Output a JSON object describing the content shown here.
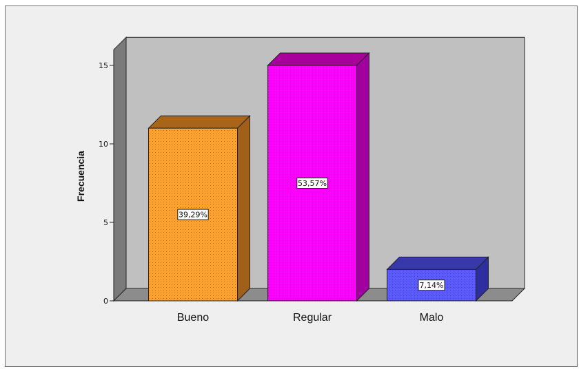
{
  "chart_data": {
    "type": "bar",
    "categories": [
      "Bueno",
      "Regular",
      "Malo"
    ],
    "values": [
      11,
      15,
      2
    ],
    "data_labels": [
      "39,29%",
      "53,57%",
      "7,14%"
    ],
    "colors": [
      "#ffa030",
      "#ff00ff",
      "#5a5aff"
    ],
    "side_colors": [
      "#a0601a",
      "#a000a0",
      "#2e2ea0"
    ],
    "top_colors": [
      "#a86418",
      "#a8009a",
      "#3838a8"
    ],
    "ylabel": "Frecuencia",
    "xlabel": "",
    "ylim": [
      0,
      16
    ],
    "yticks": [
      0,
      5,
      10,
      15
    ],
    "ytick_labels": [
      "0",
      "5",
      "10",
      "15"
    ],
    "wall_color": "#c0c0c0",
    "floor_color": "#8c8c8c",
    "side_wall_color": "#7a7a7a",
    "grid": false,
    "legend": "none",
    "style": "3d"
  }
}
